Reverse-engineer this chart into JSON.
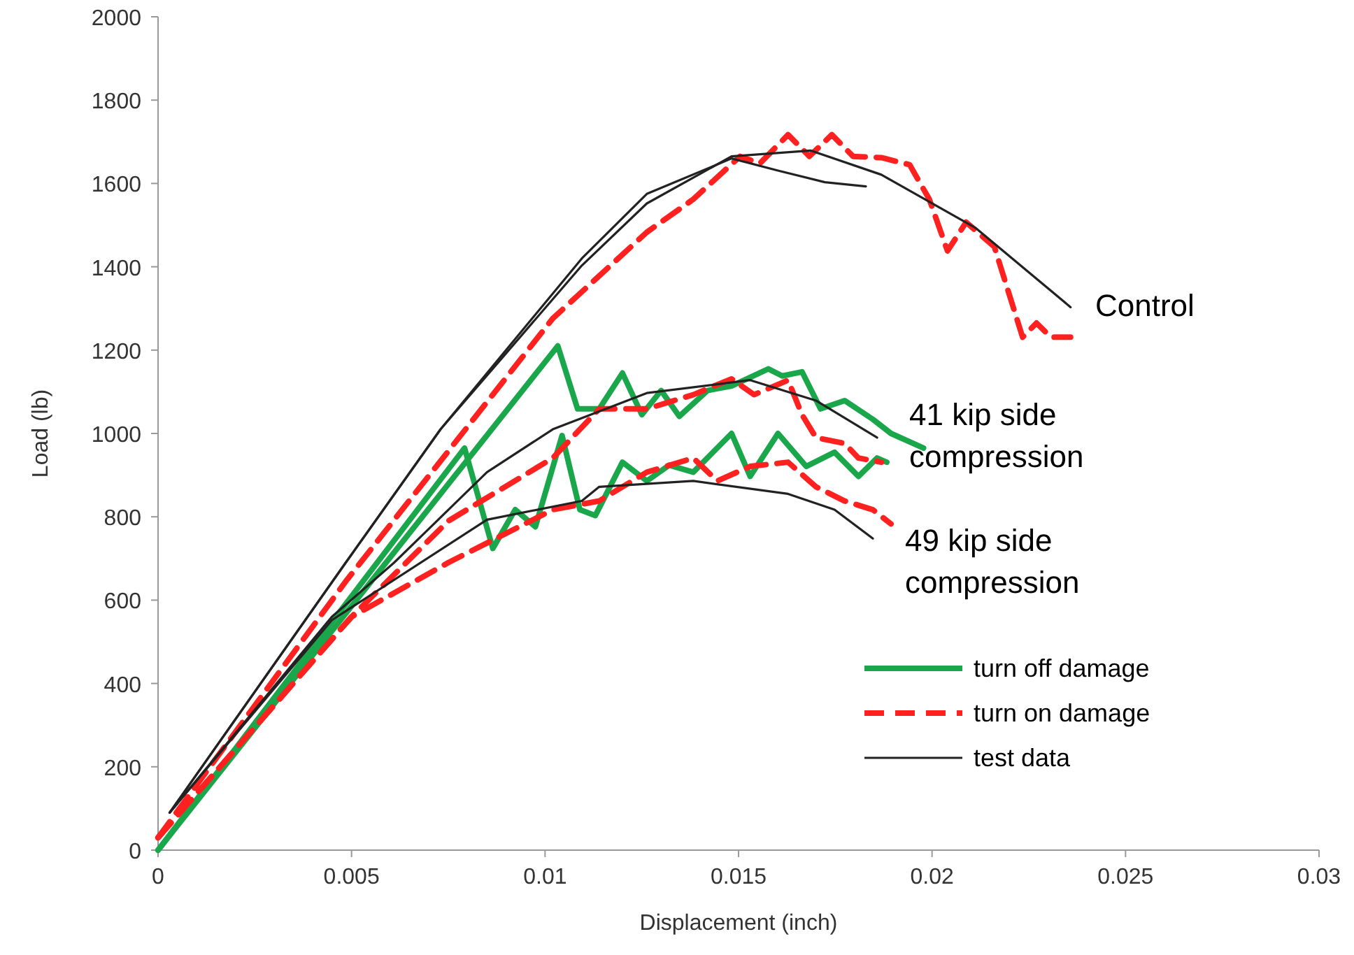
{
  "chart_data": {
    "type": "line",
    "xlabel": "Displacement (inch)",
    "ylabel": "Load (lb)",
    "xlim": [
      0,
      0.03
    ],
    "ylim": [
      0,
      2000
    ],
    "xticks": [
      0,
      0.005,
      0.01,
      0.015,
      0.02,
      0.025,
      0.03
    ],
    "yticks": [
      0,
      200,
      400,
      600,
      800,
      1000,
      1200,
      1400,
      1600,
      1800,
      2000
    ],
    "grid": false,
    "legend": "bottom right",
    "marker": "none",
    "series": [
      {
        "name": "turn off damage",
        "color": "#1aa64a",
        "line_style": "solid",
        "x": [
          0,
          0.01033,
          0.01084,
          0.0114,
          0.012,
          0.0125,
          0.013,
          0.01347,
          0.0142,
          0.01482,
          0.01577,
          0.01613,
          0.01664,
          0.01712,
          0.01774,
          0.01847,
          0.01894,
          0.01978
        ],
        "values": [
          0,
          1210,
          1059,
          1059,
          1145,
          1045,
          1103,
          1041,
          1103,
          1114,
          1155,
          1138,
          1148,
          1059,
          1079,
          1034,
          1000,
          965
        ]
      },
      {
        "color": "#1aa64a",
        "line_style": "solid",
        "x": [
          0,
          0.00792,
          0.00865,
          0.00923,
          0.00975,
          0.01044,
          0.0109,
          0.0113,
          0.012,
          0.01263,
          0.01321,
          0.01383,
          0.01482,
          0.0153,
          0.01602,
          0.01675,
          0.01748,
          0.0181,
          0.01858,
          0.01883
        ],
        "values": [
          0,
          965,
          724,
          817,
          776,
          995,
          817,
          803,
          931,
          886,
          924,
          907,
          1000,
          897,
          1000,
          921,
          955,
          897,
          941,
          931
        ]
      },
      {
        "name": "turn on damage",
        "color": "#ff2020",
        "line_style": "dashed",
        "x": [
          0,
          0.00485,
          0.0102,
          0.01263,
          0.01383,
          0.01504,
          0.01555,
          0.01628,
          0.01683,
          0.01741,
          0.01796,
          0.01869,
          0.01942,
          0.01993,
          0.0204,
          0.02088,
          0.02161,
          0.02234,
          0.0227,
          0.02307,
          0.02358
        ],
        "values": [
          30,
          645,
          1276,
          1483,
          1562,
          1665,
          1648,
          1717,
          1665,
          1717,
          1665,
          1662,
          1645,
          1562,
          1438,
          1507,
          1448,
          1231,
          1265,
          1231,
          1231
        ]
      },
      {
        "color": "#ff2020",
        "line_style": "dashed",
        "x": [
          0,
          0.005,
          0.0075,
          0.0102,
          0.0114,
          0.01263,
          0.01383,
          0.01482,
          0.0154,
          0.01628,
          0.01664,
          0.017,
          0.01774,
          0.0181,
          0.01869
        ],
        "values": [
          30,
          560,
          790,
          941,
          1059,
          1059,
          1093,
          1131,
          1093,
          1128,
          1045,
          990,
          976,
          941,
          931
        ]
      },
      {
        "color": "#ff2020",
        "line_style": "dashed",
        "x": [
          0,
          0.005,
          0.0075,
          0.0102,
          0.0114,
          0.01263,
          0.01383,
          0.01445,
          0.0153,
          0.01628,
          0.017,
          0.01774,
          0.01847,
          0.01894
        ],
        "values": [
          30,
          560,
          690,
          817,
          838,
          907,
          941,
          886,
          921,
          931,
          872,
          838,
          817,
          783
        ]
      },
      {
        "name": "test data",
        "color": "#222222",
        "line_style": "solid",
        "x": [
          0.0003,
          0.00485,
          0.0073,
          0.01095,
          0.01263,
          0.01482,
          0.01686,
          0.01869,
          0.02113,
          0.02358
        ],
        "values": [
          90,
          690,
          1010,
          1403,
          1552,
          1665,
          1679,
          1621,
          1493,
          1303
        ]
      },
      {
        "color": "#222222",
        "line_style": "solid",
        "x": [
          0.0003,
          0.00485,
          0.0073,
          0.01095,
          0.01263,
          0.01482,
          0.01602,
          0.01723,
          0.01829
        ],
        "values": [
          90,
          690,
          1010,
          1420,
          1575,
          1660,
          1631,
          1603,
          1593
        ]
      },
      {
        "color": "#222222",
        "line_style": "solid",
        "x": [
          0.0003,
          0.00449,
          0.0061,
          0.0085,
          0.0102,
          0.01263,
          0.0153,
          0.017,
          0.01858
        ],
        "values": [
          90,
          560,
          690,
          907,
          1010,
          1097,
          1128,
          1079,
          990
        ]
      },
      {
        "color": "#222222",
        "line_style": "solid",
        "x": [
          0.0003,
          0.00449,
          0.0085,
          0.01095,
          0.0114,
          0.01383,
          0.01628,
          0.01748,
          0.01847
        ],
        "values": [
          90,
          552,
          793,
          838,
          872,
          886,
          855,
          817,
          748
        ]
      }
    ],
    "annotations": [
      "Control",
      "41 kip side compression",
      "49 kip side compression"
    ]
  }
}
